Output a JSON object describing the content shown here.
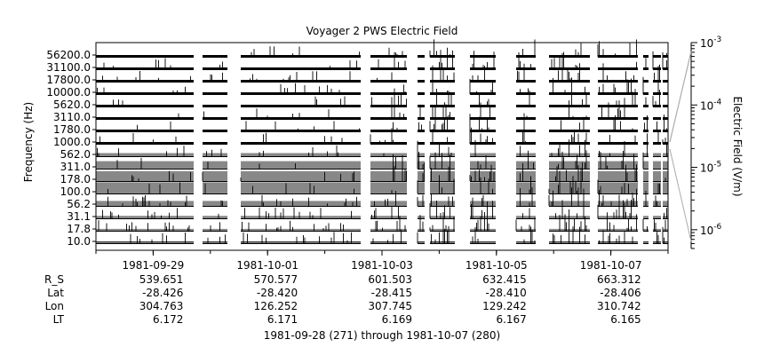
{
  "chart_data": {
    "type": "heatmap",
    "title": "Voyager 2 PWS Electric Field",
    "ylabel": "Frequency (Hz)",
    "yticks": [
      "56200.0",
      "31100.0",
      "17800.0",
      "10000.0",
      "5620.0",
      "3110.0",
      "1780.0",
      "1000.0",
      "562.0",
      "311.0",
      "178.0",
      "100.0",
      "56.2",
      "31.1",
      "17.8",
      "10.0"
    ],
    "xticks": [
      "1981-09-29",
      "1981-10-01",
      "1981-10-03",
      "1981-10-05",
      "1981-10-07"
    ],
    "xrange": [
      "1981-09-28",
      "1981-10-08"
    ],
    "colorbar": {
      "label": "Electric Field (V/m)",
      "scale": "log",
      "range": [
        5e-07,
        0.001
      ],
      "ticks": [
        {
          "value": 0.001,
          "mantissa": "10",
          "exp": "-3"
        },
        {
          "value": 0.0001,
          "mantissa": "10",
          "exp": "-4"
        },
        {
          "value": 1e-05,
          "mantissa": "10",
          "exp": "-5"
        },
        {
          "value": 1e-06,
          "mantissa": "10",
          "exp": "-6"
        }
      ]
    },
    "footer": {
      "row_labels": [
        "R_S",
        "Lat",
        "Lon",
        "LT"
      ],
      "columns": [
        [
          "539.651",
          "-28.426",
          "304.763",
          "6.172"
        ],
        [
          "570.577",
          "-28.420",
          "126.252",
          "6.171"
        ],
        [
          "601.503",
          "-28.415",
          "307.745",
          "6.169"
        ],
        [
          "632.415",
          "-28.410",
          "129.242",
          "6.167"
        ],
        [
          "663.312",
          "-28.406",
          "310.742",
          "6.165"
        ]
      ],
      "range_label": "1981-09-28 (271) through 1981-10-07 (280)"
    }
  }
}
